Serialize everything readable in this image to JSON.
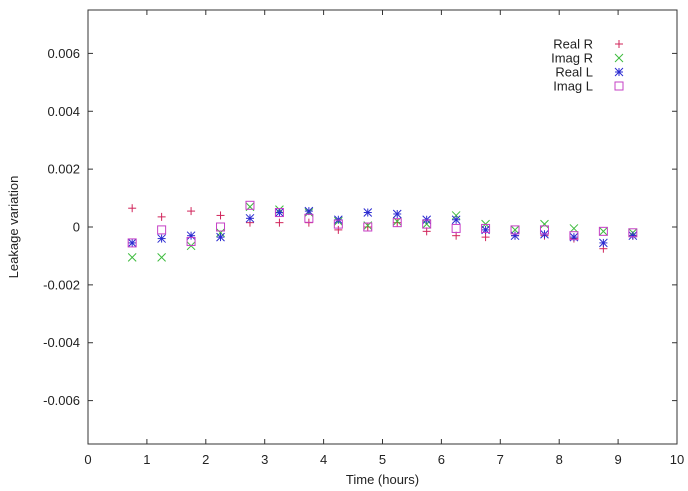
{
  "chart_data": {
    "type": "scatter",
    "title": "",
    "xlabel": "Time (hours)",
    "ylabel": "Leakage variation",
    "xlim": [
      0,
      10
    ],
    "ylim": [
      -0.0075,
      0.0075
    ],
    "x_ticks": [
      0,
      1,
      2,
      3,
      4,
      5,
      6,
      7,
      8,
      9,
      10
    ],
    "x_tick_labels": [
      "0",
      "1",
      "2",
      "3",
      "4",
      "5",
      "6",
      "7",
      "8",
      "9",
      "10"
    ],
    "y_ticks": [
      -0.006,
      -0.004,
      -0.002,
      0,
      0.002,
      0.004,
      0.006
    ],
    "y_tick_labels": [
      "-0.006",
      "-0.004",
      "-0.002",
      "0",
      "0.002",
      "0.004",
      "0.006"
    ],
    "grid": false,
    "legend_position": "top-right",
    "series": [
      {
        "name": "Real R",
        "marker": "plus",
        "color": "#d0245a",
        "x": [
          0.75,
          1.25,
          1.75,
          2.25,
          2.75,
          3.25,
          3.75,
          4.25,
          4.75,
          5.25,
          5.75,
          6.25,
          6.75,
          7.25,
          7.75,
          8.25,
          8.75,
          9.25
        ],
        "y": [
          0.00065,
          0.00035,
          0.00055,
          0.0004,
          0.00015,
          0.00015,
          0.00015,
          -0.0001,
          0.0,
          0.00015,
          -0.00015,
          -0.0003,
          -0.00035,
          -0.0003,
          -0.0003,
          -0.0004,
          -0.00075,
          -0.0003
        ]
      },
      {
        "name": "Imag R",
        "marker": "cross",
        "color": "#3dbb3d",
        "x": [
          0.75,
          1.25,
          1.75,
          2.25,
          2.75,
          3.25,
          3.75,
          4.25,
          4.75,
          5.25,
          5.75,
          6.25,
          6.75,
          7.25,
          7.75,
          8.25,
          8.75,
          9.25
        ],
        "y": [
          -0.00105,
          -0.00105,
          -0.00065,
          -0.0002,
          0.0007,
          0.0006,
          0.0005,
          0.0002,
          5e-05,
          0.0002,
          0.0001,
          0.0004,
          0.0001,
          -0.0001,
          0.0001,
          -5e-05,
          -0.00015,
          -0.0002
        ]
      },
      {
        "name": "Real L",
        "marker": "star",
        "color": "#2a2ad0",
        "x": [
          0.75,
          1.25,
          1.75,
          2.25,
          2.75,
          3.25,
          3.75,
          4.25,
          4.75,
          5.25,
          5.75,
          6.25,
          6.75,
          7.25,
          7.75,
          8.25,
          8.75,
          9.25
        ],
        "y": [
          -0.00055,
          -0.0004,
          -0.0003,
          -0.00035,
          0.0003,
          0.0005,
          0.00055,
          0.00025,
          0.0005,
          0.00045,
          0.00025,
          0.00025,
          -0.0001,
          -0.0003,
          -0.00025,
          -0.00035,
          -0.00055,
          -0.0003
        ]
      },
      {
        "name": "Imag L",
        "marker": "square",
        "color": "#c640c6",
        "x": [
          0.75,
          1.25,
          1.75,
          2.25,
          2.75,
          3.25,
          3.75,
          4.25,
          4.75,
          5.25,
          5.75,
          6.25,
          6.75,
          7.25,
          7.75,
          8.25,
          8.75,
          9.25
        ],
        "y": [
          -0.00055,
          -0.0001,
          -0.0005,
          0.0,
          0.00075,
          0.0005,
          0.0003,
          0.0001,
          0.0,
          0.00015,
          0.0001,
          -5e-05,
          -5e-05,
          -0.0001,
          -0.0001,
          -0.0003,
          -0.00015,
          -0.0002
        ]
      }
    ]
  }
}
